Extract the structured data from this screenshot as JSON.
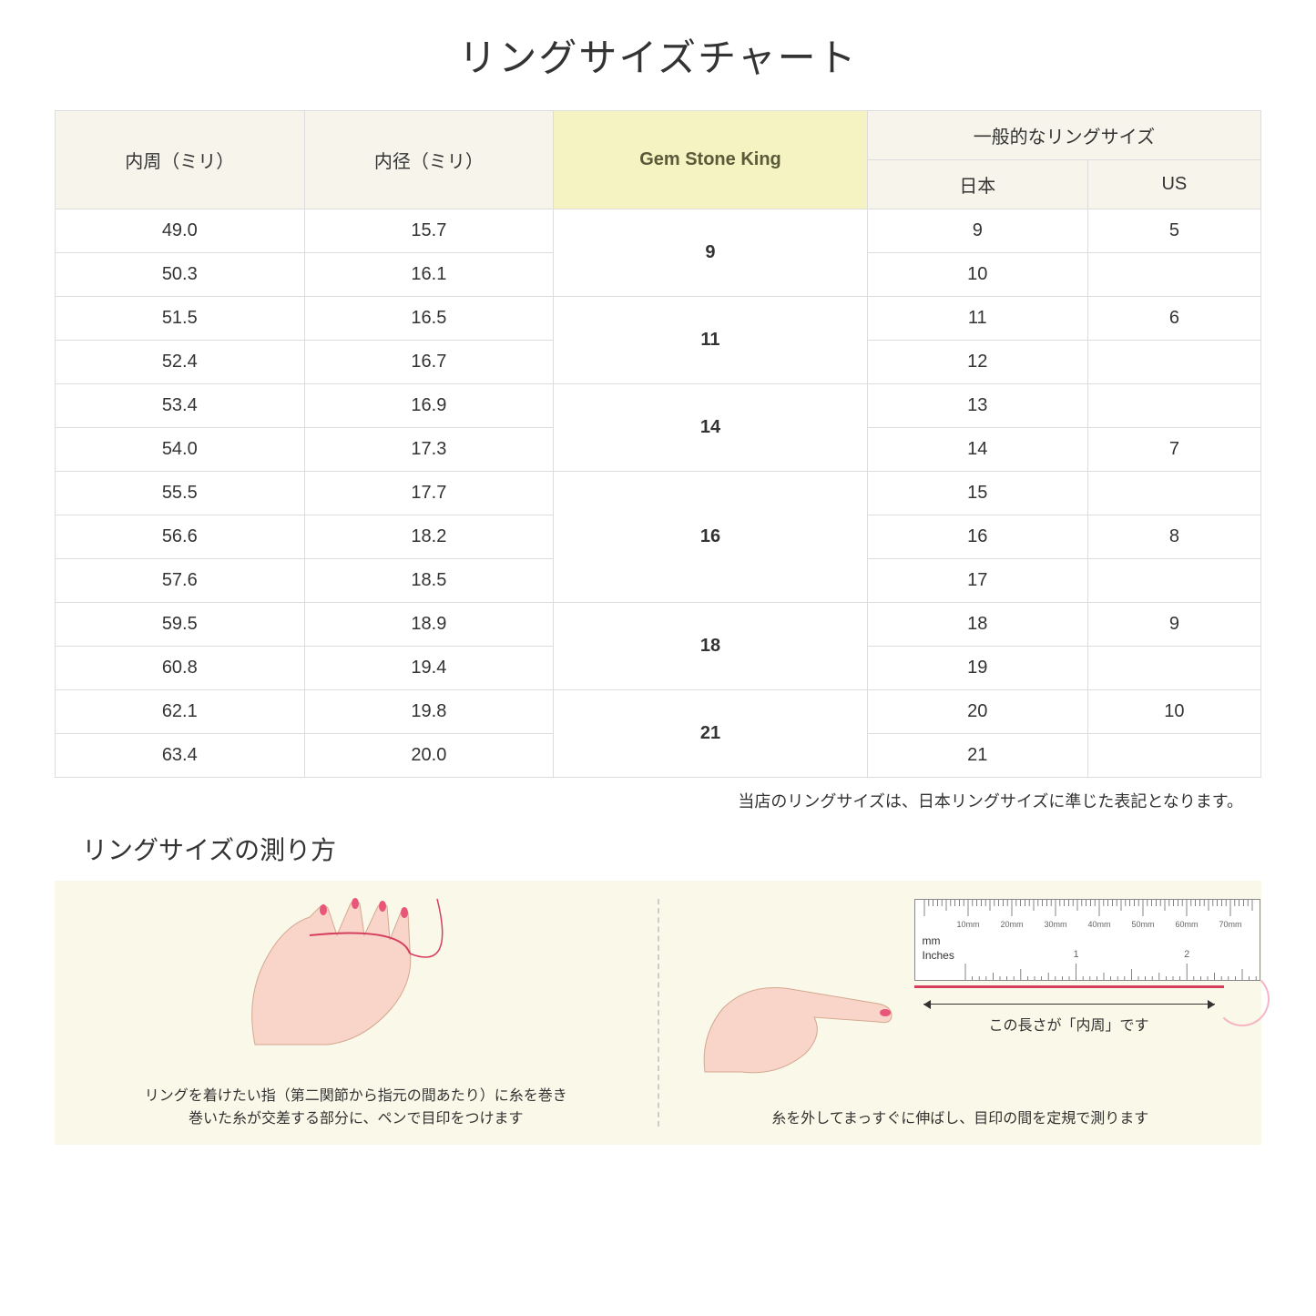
{
  "title": "リングサイズチャート",
  "headers": {
    "circumference": "内周（ミリ）",
    "diameter": "内径（ミリ）",
    "gsk": "Gem Stone King",
    "general": "一般的なリングサイズ",
    "japan": "日本",
    "us": "US"
  },
  "groups": [
    {
      "gsk": "9",
      "rows": [
        {
          "c": "49.0",
          "d": "15.7",
          "jp": "9",
          "us": "5"
        },
        {
          "c": "50.3",
          "d": "16.1",
          "jp": "10",
          "us": ""
        }
      ]
    },
    {
      "gsk": "11",
      "rows": [
        {
          "c": "51.5",
          "d": "16.5",
          "jp": "11",
          "us": "6"
        },
        {
          "c": "52.4",
          "d": "16.7",
          "jp": "12",
          "us": ""
        }
      ]
    },
    {
      "gsk": "14",
      "rows": [
        {
          "c": "53.4",
          "d": "16.9",
          "jp": "13",
          "us": ""
        },
        {
          "c": "54.0",
          "d": "17.3",
          "jp": "14",
          "us": "7"
        }
      ]
    },
    {
      "gsk": "16",
      "span": 3,
      "rows": [
        {
          "c": "55.5",
          "d": "17.7",
          "jp": "15",
          "us": ""
        },
        {
          "c": "56.6",
          "d": "18.2",
          "jp": "16",
          "us": "8"
        },
        {
          "c": "57.6",
          "d": "18.5",
          "jp": "17",
          "us": ""
        }
      ]
    },
    {
      "gsk": "18",
      "rows": [
        {
          "c": "59.5",
          "d": "18.9",
          "jp": "18",
          "us": "9"
        },
        {
          "c": "60.8",
          "d": "19.4",
          "jp": "19",
          "us": ""
        }
      ]
    },
    {
      "gsk": "21",
      "rows": [
        {
          "c": "62.1",
          "d": "19.8",
          "jp": "20",
          "us": "10"
        },
        {
          "c": "63.4",
          "d": "20.0",
          "jp": "21",
          "us": ""
        }
      ]
    }
  ],
  "note": "当店のリングサイズは、日本リングサイズに準じた表記となります。",
  "howto_title": "リングサイズの測り方",
  "howto_left": "リングを着けたい指（第二関節から指元の間あたり）に糸を巻き\n巻いた糸が交差する部分に、ペンで目印をつけます",
  "howto_right": "糸を外してまっすぐに伸ばし、目印の間を定規で測ります",
  "arrow_label": "この長さが「内周」です",
  "ruler_mm": "mm",
  "ruler_in": "Inches",
  "ruler_marks_mm": [
    "10mm",
    "20mm",
    "30mm",
    "40mm",
    "50mm",
    "60mm",
    "70mm"
  ],
  "ruler_marks_in": [
    "1",
    "2"
  ],
  "colors": {
    "header_bg": "#f6f4eb",
    "highlight_bg": "#f5f3c2",
    "howto_bg": "#faf8e8",
    "skin": "#f8d5c8",
    "nail": "#e8577a",
    "thread": "#d63e5e"
  }
}
